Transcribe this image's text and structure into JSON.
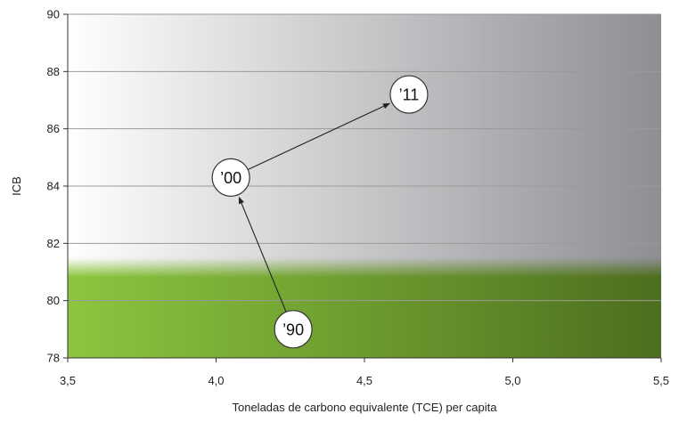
{
  "chart_data": {
    "type": "scatter",
    "title": "",
    "xlabel": "Toneladas de carbono equivalente (TCE) per capita",
    "ylabel": "ICB",
    "xlim": [
      3.5,
      5.5
    ],
    "ylim": [
      78,
      90
    ],
    "x_ticks": [
      3.5,
      4.0,
      4.5,
      5.0,
      5.5
    ],
    "x_tick_labels": [
      "3,5",
      "4,0",
      "4,5",
      "5,0",
      "5,5"
    ],
    "y_ticks": [
      78,
      80,
      82,
      84,
      86,
      88,
      90
    ],
    "y_tick_labels": [
      "78",
      "80",
      "82",
      "84",
      "86",
      "88",
      "90"
    ],
    "grid": "horizontal",
    "background_bands": [
      {
        "name": "green",
        "y_from": 78,
        "y_to": 81.5,
        "colors": [
          "#8cc63f",
          "#4d6e1e"
        ]
      },
      {
        "name": "gray",
        "y_from": 81.5,
        "y_to": 90,
        "colors": [
          "#ffffff",
          "#8e8f93"
        ]
      }
    ],
    "points": [
      {
        "label": "’90",
        "x": 4.26,
        "y": 79.0
      },
      {
        "label": "’00",
        "x": 4.05,
        "y": 84.3
      },
      {
        "label": "’11",
        "x": 4.65,
        "y": 87.2
      }
    ],
    "arrows": [
      {
        "from": 0,
        "to": 1
      },
      {
        "from": 1,
        "to": 2
      }
    ],
    "colors": {
      "grid": "#9a9a9a",
      "arrow": "#222222",
      "circle_fill": "#ffffff",
      "circle_stroke": "#333333"
    }
  }
}
